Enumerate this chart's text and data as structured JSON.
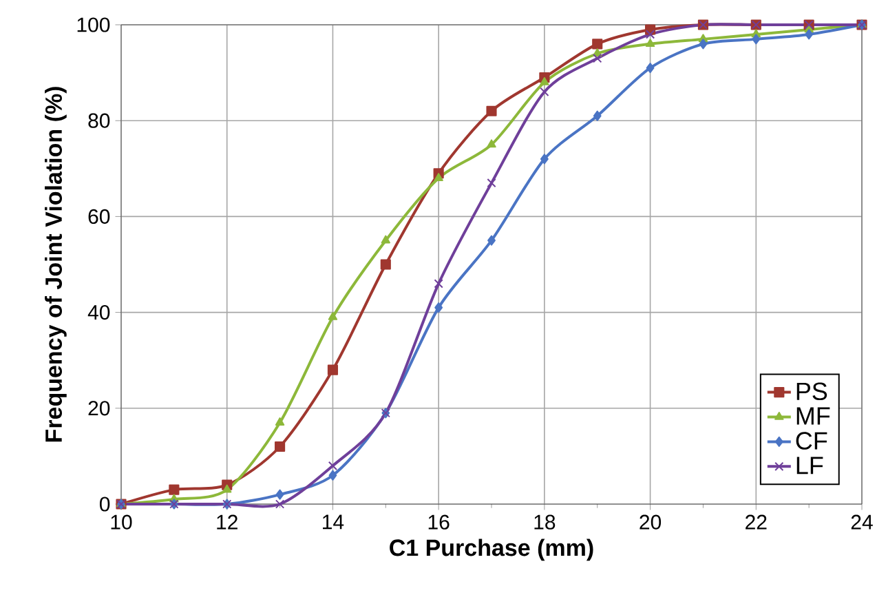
{
  "chart_data": {
    "type": "line",
    "xlabel": "C1 Purchase (mm)",
    "ylabel": "Frequency of Joint Violation (%)",
    "x": [
      10,
      11,
      12,
      13,
      14,
      15,
      16,
      17,
      18,
      19,
      20,
      21,
      22,
      23,
      24
    ],
    "series": [
      {
        "name": "PS",
        "color": "#a0372f",
        "marker": "square",
        "values": [
          0,
          3,
          4,
          12,
          28,
          50,
          69,
          82,
          89,
          96,
          99,
          100,
          100,
          100,
          100
        ]
      },
      {
        "name": "MF",
        "color": "#8db83a",
        "marker": "triangle",
        "values": [
          0,
          1,
          3,
          17,
          39,
          55,
          68,
          75,
          88,
          94,
          96,
          97,
          98,
          99,
          100
        ]
      },
      {
        "name": "CF",
        "color": "#4a74c4",
        "marker": "diamond",
        "values": [
          0,
          0,
          0,
          2,
          6,
          19,
          41,
          55,
          72,
          81,
          91,
          96,
          97,
          98,
          100
        ]
      },
      {
        "name": "LF",
        "color": "#6f3f9a",
        "marker": "cross",
        "values": [
          0,
          0,
          0,
          0,
          8,
          19,
          46,
          67,
          86,
          93,
          98,
          100,
          100,
          100,
          100
        ]
      }
    ],
    "xlim": [
      10,
      24
    ],
    "ylim": [
      0,
      100
    ],
    "xticks": [
      10,
      {
        "value": 11,
        "label": null
      },
      12,
      {
        "value": 13,
        "label": null
      },
      14,
      {
        "value": 15,
        "label": null
      },
      16,
      {
        "value": 17,
        "label": null
      },
      18,
      {
        "value": 19,
        "label": null
      },
      20,
      {
        "value": 21,
        "label": null
      },
      22,
      {
        "value": 23,
        "label": null
      },
      24
    ],
    "yticks": [
      0,
      20,
      40,
      60,
      80,
      100
    ],
    "grid": true,
    "legend": "bottom right",
    "line_style": "solid"
  }
}
